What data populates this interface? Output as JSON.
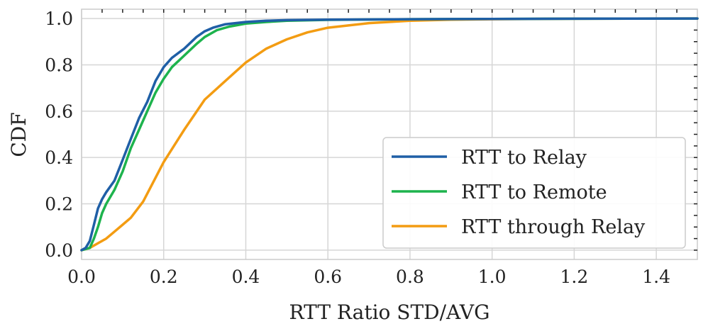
{
  "chart_data": {
    "type": "line",
    "title": "",
    "xlabel": "RTT Ratio STD/AVG",
    "ylabel": "CDF",
    "xlim": [
      0.0,
      1.5
    ],
    "ylim": [
      -0.04,
      1.04
    ],
    "xticks": [
      "0.0",
      "0.2",
      "0.4",
      "0.6",
      "0.8",
      "1.0",
      "1.2",
      "1.4"
    ],
    "yticks": [
      "0.0",
      "0.2",
      "0.4",
      "0.6",
      "0.8",
      "1.0"
    ],
    "grid": true,
    "legend_position": "lower-right",
    "series": [
      {
        "name": "RTT to Relay",
        "color": "#1f5fa6",
        "x": [
          0.0,
          0.01,
          0.02,
          0.03,
          0.04,
          0.05,
          0.06,
          0.08,
          0.1,
          0.12,
          0.14,
          0.16,
          0.18,
          0.2,
          0.22,
          0.25,
          0.28,
          0.3,
          0.32,
          0.35,
          0.4,
          0.45,
          0.5,
          0.6,
          0.8,
          1.0,
          1.2,
          1.5
        ],
        "y": [
          0.0,
          0.01,
          0.04,
          0.11,
          0.18,
          0.22,
          0.25,
          0.3,
          0.39,
          0.48,
          0.57,
          0.64,
          0.73,
          0.79,
          0.83,
          0.87,
          0.92,
          0.945,
          0.96,
          0.975,
          0.985,
          0.99,
          0.993,
          0.995,
          0.997,
          0.998,
          0.999,
          1.0
        ]
      },
      {
        "name": "RTT to Remote",
        "color": "#1db34d",
        "x": [
          0.0,
          0.02,
          0.03,
          0.04,
          0.05,
          0.06,
          0.08,
          0.1,
          0.12,
          0.14,
          0.16,
          0.18,
          0.2,
          0.22,
          0.25,
          0.28,
          0.3,
          0.33,
          0.36,
          0.4,
          0.45,
          0.5,
          0.6,
          0.8,
          1.0,
          1.2,
          1.5
        ],
        "y": [
          0.0,
          0.01,
          0.05,
          0.1,
          0.16,
          0.2,
          0.26,
          0.34,
          0.44,
          0.52,
          0.6,
          0.68,
          0.74,
          0.79,
          0.84,
          0.89,
          0.92,
          0.95,
          0.965,
          0.978,
          0.985,
          0.99,
          0.994,
          0.997,
          0.998,
          0.999,
          1.0
        ]
      },
      {
        "name": "RTT through Relay",
        "color": "#f39c12",
        "x": [
          0.0,
          0.02,
          0.04,
          0.06,
          0.08,
          0.1,
          0.12,
          0.15,
          0.2,
          0.25,
          0.3,
          0.35,
          0.4,
          0.45,
          0.5,
          0.55,
          0.6,
          0.65,
          0.7,
          0.8,
          0.9,
          1.0,
          1.2,
          1.5
        ],
        "y": [
          0.0,
          0.01,
          0.03,
          0.05,
          0.08,
          0.11,
          0.14,
          0.21,
          0.38,
          0.52,
          0.65,
          0.73,
          0.81,
          0.87,
          0.91,
          0.94,
          0.96,
          0.97,
          0.98,
          0.99,
          0.995,
          0.997,
          0.999,
          1.0
        ]
      }
    ]
  }
}
